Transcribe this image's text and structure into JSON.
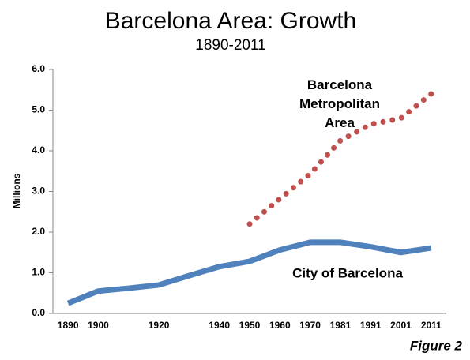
{
  "chart_data": {
    "type": "line",
    "title": "Barcelona Area: Growth",
    "subtitle": "1890-2011",
    "y_label": "Millions",
    "figure_label": "Figure 2",
    "categories": [
      "1890",
      "1900",
      null,
      "1920",
      null,
      "1940",
      "1950",
      "1960",
      "1970",
      "1981",
      "1991",
      "2001",
      "2011"
    ],
    "series": [
      {
        "name": "City of Barcelona",
        "color": "#4f81bd",
        "style": "solid",
        "values": [
          0.25,
          0.55,
          0.62,
          0.7,
          0.93,
          1.15,
          1.28,
          1.56,
          1.75,
          1.75,
          1.64,
          1.5,
          1.61
        ]
      },
      {
        "name": "Barcelona Metropolitan Area",
        "color": "#c0504d",
        "style": "dotted",
        "values": [
          null,
          null,
          null,
          null,
          null,
          null,
          2.2,
          2.82,
          3.43,
          4.25,
          4.65,
          4.8,
          5.4
        ]
      }
    ],
    "ylim": [
      0,
      6
    ],
    "yticks": [
      {
        "value": 0,
        "label": "0.0"
      },
      {
        "value": 1,
        "label": "1.0"
      },
      {
        "value": 2,
        "label": "2.0"
      },
      {
        "value": 3,
        "label": "3.0"
      },
      {
        "value": 4,
        "label": "4.0"
      },
      {
        "value": 5,
        "label": "5.0"
      },
      {
        "value": 6,
        "label": "6.0"
      }
    ],
    "grid": false
  }
}
